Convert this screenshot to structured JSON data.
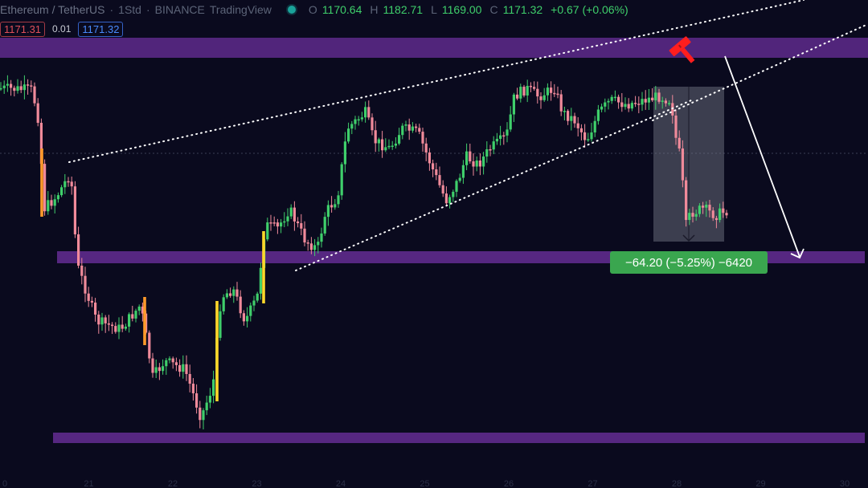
{
  "header": {
    "symbol": "Ethereum / TetherUS",
    "sep1": "·",
    "interval": "1Std",
    "sep2": "·",
    "exchange": "BINANCE",
    "platform": "TradingView",
    "open_label": "O",
    "open": "1170.64",
    "high_label": "H",
    "high": "1182.71",
    "low_label": "L",
    "low": "1169.00",
    "close_label": "C",
    "close": "1171.32",
    "change": "+0.67 (+0.06%)"
  },
  "trade": {
    "sell_price": "1171.31",
    "spread": "0.01",
    "buy_price": "1171.32"
  },
  "measure_label": "−64.20 (−5.25%) −6420",
  "x_axis_labels": [
    "0",
    "21",
    "22",
    "23",
    "24",
    "25",
    "26",
    "27",
    "28",
    "29",
    "30"
  ],
  "colors": {
    "background": "#0a0a1e",
    "up_candle": "#3fcf6b",
    "down_candle": "#f08a9a",
    "zone": "#5e2a8c",
    "measure": "#3aa64f",
    "hammer": "#ff1e1e"
  }
}
